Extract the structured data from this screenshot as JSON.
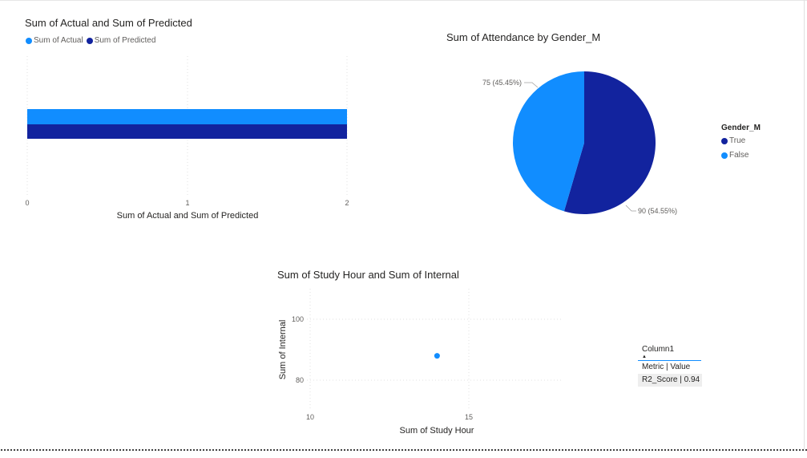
{
  "colors": {
    "actual": "#118dff",
    "predicted": "#12239e",
    "gridline": "#e1e1e1"
  },
  "charts": {
    "bar": {
      "title": "Sum of Actual and Sum of Predicted",
      "legend": [
        {
          "label": "Sum of Actual",
          "color": "#118dff"
        },
        {
          "label": "Sum of Predicted",
          "color": "#12239e"
        }
      ],
      "x_axis_title": "Sum of Actual and Sum of Predicted",
      "x_ticks": [
        "0",
        "1",
        "2"
      ]
    },
    "pie": {
      "title": "Sum of Attendance by Gender_M",
      "legend_title": "Gender_M",
      "legend": [
        {
          "label": "True",
          "color": "#12239e"
        },
        {
          "label": "False",
          "color": "#118dff"
        }
      ],
      "labels": {
        "false_label": "75 (45.45%)",
        "true_label": "90 (54.55%)"
      }
    },
    "scatter": {
      "title": "Sum of Study Hour and Sum of Internal",
      "x_axis_title": "Sum of Study Hour",
      "y_axis_title": "Sum of Internal",
      "x_ticks": [
        "10",
        "15"
      ],
      "y_ticks": [
        "100",
        "80"
      ]
    }
  },
  "table": {
    "column_header": "Column1",
    "sort_icon": "sort-ascending-icon",
    "sort_glyph": "▲",
    "rows": [
      "Metric | Value",
      "R2_Score | 0.94"
    ]
  },
  "chart_data": [
    {
      "type": "bar",
      "orientation": "horizontal",
      "title": "Sum of Actual and Sum of Predicted",
      "xlabel": "Sum of Actual and Sum of Predicted",
      "ylabel": "",
      "categories": [
        ""
      ],
      "series": [
        {
          "name": "Sum of Actual",
          "values": [
            2
          ]
        },
        {
          "name": "Sum of Predicted",
          "values": [
            2
          ]
        }
      ],
      "xlim": [
        0,
        2
      ],
      "grid": true,
      "legend": "top-left"
    },
    {
      "type": "pie",
      "title": "Sum of Attendance by Gender_M",
      "legend_title": "Gender_M",
      "slices": [
        {
          "label": "True",
          "value": 90,
          "percent": 54.55
        },
        {
          "label": "False",
          "value": 75,
          "percent": 45.45
        }
      ],
      "legend": "right"
    },
    {
      "type": "scatter",
      "title": "Sum of Study Hour and Sum of Internal",
      "xlabel": "Sum of Study Hour",
      "ylabel": "Sum of Internal",
      "points": [
        {
          "x": 14,
          "y": 88
        }
      ],
      "xlim": [
        9.5,
        17.5
      ],
      "ylim": [
        74,
        106
      ],
      "grid": true
    }
  ]
}
